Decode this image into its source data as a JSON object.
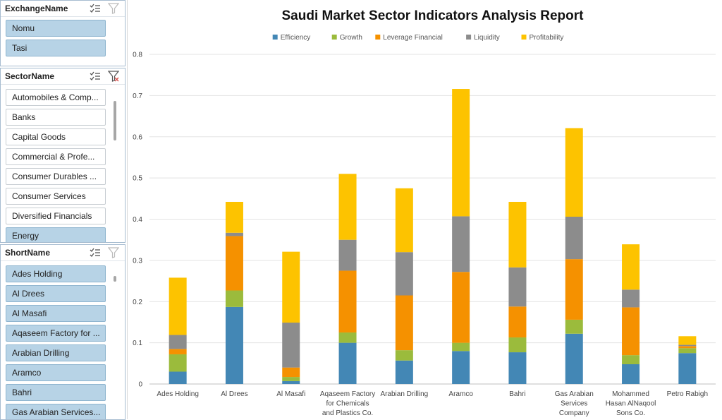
{
  "slicers": {
    "exchange": {
      "title": "ExchangeName",
      "items": [
        {
          "label": "Nomu",
          "selected": true
        },
        {
          "label": "Tasi",
          "selected": true
        }
      ]
    },
    "sector": {
      "title": "SectorName",
      "items": [
        {
          "label": "Automobiles & Comp...",
          "selected": false
        },
        {
          "label": "Banks",
          "selected": false
        },
        {
          "label": "Capital Goods",
          "selected": false
        },
        {
          "label": "Commercial & Profe...",
          "selected": false
        },
        {
          "label": "Consumer Durables ...",
          "selected": false
        },
        {
          "label": "Consumer Services",
          "selected": false
        },
        {
          "label": "Diversified Financials",
          "selected": false
        },
        {
          "label": "Energy",
          "selected": true
        }
      ]
    },
    "short": {
      "title": "ShortName",
      "items": [
        {
          "label": "Ades Holding",
          "selected": true
        },
        {
          "label": "Al Drees",
          "selected": true
        },
        {
          "label": "Al Masafi",
          "selected": true
        },
        {
          "label": "Aqaseem Factory for ...",
          "selected": true
        },
        {
          "label": "Arabian Drilling",
          "selected": true
        },
        {
          "label": "Aramco",
          "selected": true
        },
        {
          "label": "Bahri",
          "selected": true
        },
        {
          "label": "Gas Arabian Services...",
          "selected": true
        }
      ]
    }
  },
  "chart_data": {
    "type": "bar",
    "stacked": true,
    "title": "Saudi Market Sector Indicators Analysis Report",
    "legend_position": "top",
    "grid": true,
    "ylim": [
      0,
      0.8
    ],
    "yticks": [
      "0",
      "0.1",
      "0.2",
      "0.3",
      "0.4",
      "0.5",
      "0.6",
      "0.7",
      "0.8"
    ],
    "categories": [
      [
        "Ades Holding"
      ],
      [
        "Al Drees"
      ],
      [
        "Al Masafi"
      ],
      [
        "Aqaseem Factory",
        "for Chemicals",
        "and Plastics Co."
      ],
      [
        "Arabian Drilling"
      ],
      [
        "Aramco"
      ],
      [
        "Bahri"
      ],
      [
        "Gas Arabian",
        "Services",
        "Company"
      ],
      [
        "Mohammed",
        "Hasan AlNaqool",
        "Sons Co."
      ],
      [
        "Petro Rabigh"
      ]
    ],
    "series": [
      {
        "name": "Efficiency",
        "color": "#4387b5",
        "values": [
          0.03,
          0.187,
          0.007,
          0.1,
          0.057,
          0.08,
          0.077,
          0.122,
          0.048,
          0.075
        ]
      },
      {
        "name": "Growth",
        "color": "#9bbb3c",
        "values": [
          0.042,
          0.04,
          0.01,
          0.025,
          0.025,
          0.02,
          0.036,
          0.034,
          0.022,
          0.012
        ]
      },
      {
        "name": "Leverage Financial",
        "color": "#f59100",
        "values": [
          0.013,
          0.132,
          0.023,
          0.15,
          0.133,
          0.172,
          0.075,
          0.147,
          0.116,
          0.005
        ]
      },
      {
        "name": "Liquidity",
        "color": "#8c8c8c",
        "values": [
          0.034,
          0.008,
          0.109,
          0.075,
          0.105,
          0.135,
          0.095,
          0.103,
          0.043,
          0.003
        ]
      },
      {
        "name": "Profitability",
        "color": "#fdc300",
        "values": [
          0.139,
          0.075,
          0.172,
          0.16,
          0.155,
          0.309,
          0.159,
          0.215,
          0.11,
          0.021
        ]
      }
    ]
  }
}
